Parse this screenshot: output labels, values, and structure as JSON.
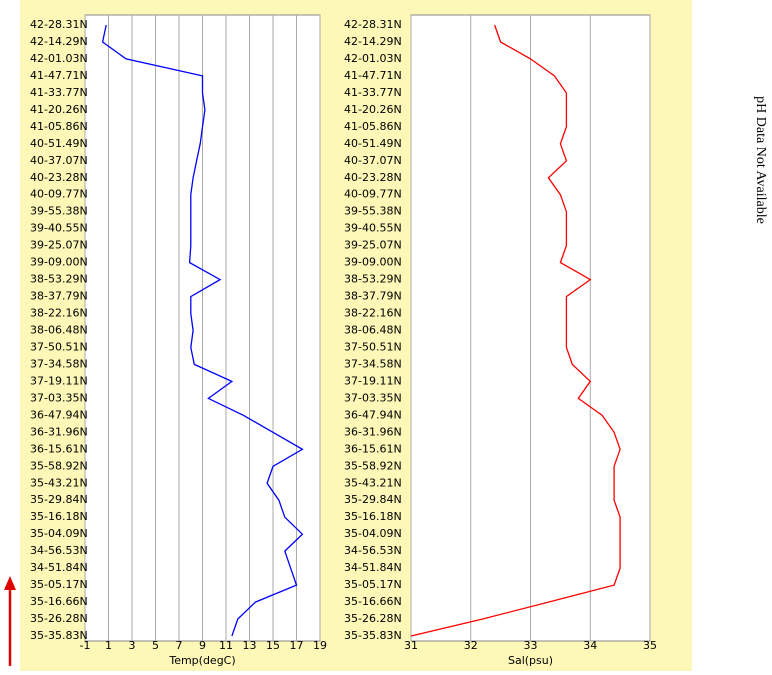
{
  "chart_data": [
    {
      "type": "line",
      "orientation": "horizontal",
      "xlabel": "Temp(degC)",
      "color": "#0000ff",
      "categories": [
        "42-28.31N",
        "42-14.29N",
        "42-01.03N",
        "41-47.71N",
        "41-33.77N",
        "41-20.26N",
        "41-05.86N",
        "40-51.49N",
        "40-37.07N",
        "40-23.28N",
        "40-09.77N",
        "39-55.38N",
        "39-40.55N",
        "39-25.07N",
        "39-09.00N",
        "38-53.29N",
        "38-37.79N",
        "38-22.16N",
        "38-06.48N",
        "37-50.51N",
        "37-34.58N",
        "37-19.11N",
        "37-03.35N",
        "36-47.94N",
        "36-31.96N",
        "36-15.61N",
        "35-58.92N",
        "35-43.21N",
        "35-29.84N",
        "35-16.18N",
        "35-04.09N",
        "34-56.53N",
        "34-51.84N",
        "35-05.17N",
        "35-16.66N",
        "35-26.28N",
        "35-35.83N"
      ],
      "values": [
        0.8,
        0.5,
        2.5,
        9,
        9,
        9.2,
        9,
        8.8,
        8.5,
        8.2,
        8,
        8,
        8,
        8,
        7.9,
        10.5,
        8,
        8,
        8.2,
        8,
        8.3,
        11.5,
        9.5,
        12.5,
        15,
        17.5,
        15,
        14.5,
        15.5,
        16,
        17.5,
        16,
        16.5,
        17,
        13.5,
        12,
        11.5
      ],
      "xlim": [
        -1,
        19
      ],
      "xticks": [
        -1,
        1,
        3,
        5,
        7,
        9,
        11,
        13,
        15,
        17,
        19
      ],
      "grid": true
    },
    {
      "type": "line",
      "orientation": "horizontal",
      "xlabel": "Sal(psu)",
      "color": "#ff0000",
      "categories": [
        "42-28.31N",
        "42-14.29N",
        "42-01.03N",
        "41-47.71N",
        "41-33.77N",
        "41-20.26N",
        "41-05.86N",
        "40-51.49N",
        "40-37.07N",
        "40-23.28N",
        "40-09.77N",
        "39-55.38N",
        "39-40.55N",
        "39-25.07N",
        "39-09.00N",
        "38-53.29N",
        "38-37.79N",
        "38-22.16N",
        "38-06.48N",
        "37-50.51N",
        "37-34.58N",
        "37-19.11N",
        "37-03.35N",
        "36-47.94N",
        "36-31.96N",
        "36-15.61N",
        "35-58.92N",
        "35-43.21N",
        "35-29.84N",
        "35-16.18N",
        "35-04.09N",
        "34-56.53N",
        "34-51.84N",
        "35-05.17N",
        "35-16.66N",
        "35-26.28N",
        "35-35.83N"
      ],
      "values": [
        32.4,
        32.5,
        33,
        33.4,
        33.6,
        33.6,
        33.6,
        33.5,
        33.6,
        33.3,
        33.5,
        33.6,
        33.6,
        33.6,
        33.5,
        34,
        33.6,
        33.6,
        33.6,
        33.6,
        33.7,
        34,
        33.8,
        34.2,
        34.4,
        34.5,
        34.4,
        34.4,
        34.4,
        34.5,
        34.5,
        34.5,
        34.5,
        34.4,
        33.3,
        32.2,
        31
      ],
      "xlim": [
        31,
        35
      ],
      "xticks": [
        31,
        32,
        33,
        34,
        35
      ],
      "grid": true
    }
  ],
  "note": "pH Data Not Available"
}
